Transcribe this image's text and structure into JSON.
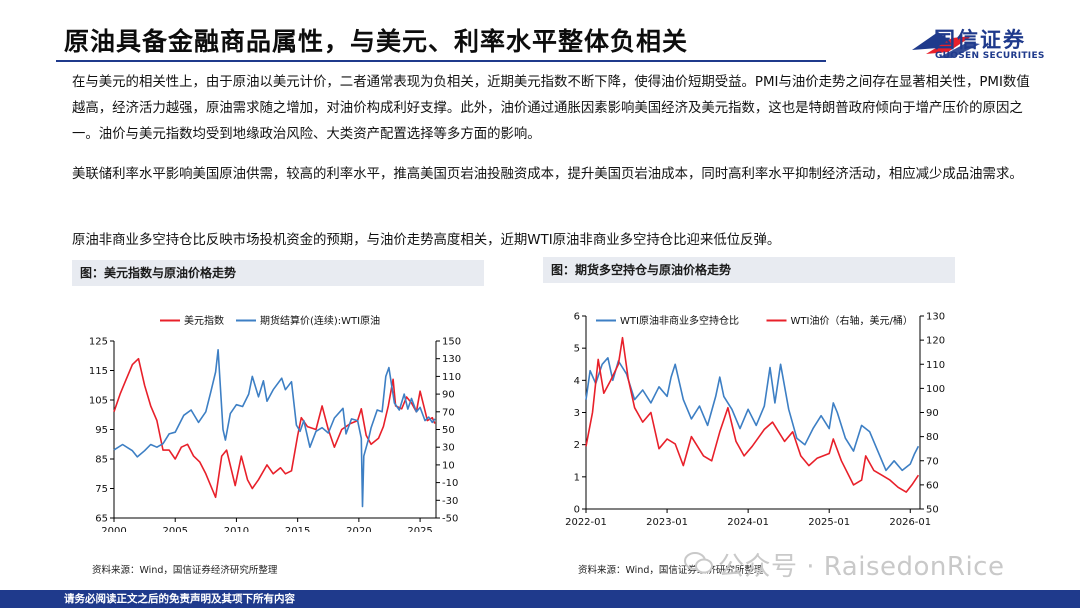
{
  "header": {
    "title": "原油具备金融商品属性，与美元、利率水平整体负相关",
    "logo_cn": "国信证券",
    "logo_en": "GUOSEN SECURITIES"
  },
  "body": {
    "p1": "在与美元的相关性上，由于原油以美元计价，二者通常表现为负相关，近期美元指数不断下降，使得油价短期受益。PMI与油价走势之间存在显著相关性，PMI数值越高，经济活力越强，原油需求随之增加，对油价构成利好支撑。此外，油价通过通胀因素影响美国经济及美元指数，这也是特朗普政府倾向于增产压价的原因之一。油价与美元指数均受到地缘政治风险、大类资产配置选择等多方面的影响。",
    "p2": "美联储利率水平影响美国原油供需，较高的利率水平，推高美国页岩油投融资成本，提升美国页岩油成本，同时高利率水平抑制经济活动，相应减少成品油需求。",
    "p3": "原油非商业多空持仓比反映市场投机资金的预期，与油价走势高度相关，近期WTI原油非商业多空持仓比迎来低位反弹。"
  },
  "figures": {
    "fig1_caption": "图：美元指数与原油价格走势",
    "fig2_caption": "图：期货多空持仓与原油价格走势",
    "source1": "资料来源：Wind，国信证券经济研究所整理",
    "source2": "资料来源：Wind，国信证券经济研究所整理"
  },
  "watermark": "公众号 · RaisedonRice",
  "footer": "请务必阅读正文之后的免责声明及其项下所有内容",
  "colors": {
    "red": "#e8202a",
    "blue": "#3d7fc4",
    "navy": "#1f3a8c"
  },
  "chart_data": [
    {
      "type": "line",
      "legend_placement": "top",
      "grid": false,
      "x_ticks": [
        "2000",
        "2005",
        "2010",
        "2015",
        "2020",
        "2025"
      ],
      "xlim": [
        2000,
        2026.3
      ],
      "y_left_ticks": [
        "65",
        "75",
        "85",
        "95",
        "105",
        "115",
        "125"
      ],
      "ylim_left": [
        65,
        125
      ],
      "y_right_ticks": [
        "-50",
        "-30",
        "-10",
        "10",
        "30",
        "50",
        "70",
        "90",
        "110",
        "130",
        "150"
      ],
      "ylim_right": [
        -50,
        150
      ],
      "series": [
        {
          "name": "美元指数",
          "color": "#e8202a",
          "axis": "left",
          "points": [
            [
              2000.0,
              101
            ],
            [
              2000.5,
              107
            ],
            [
              2001.0,
              112
            ],
            [
              2001.5,
              117
            ],
            [
              2002.0,
              119
            ],
            [
              2002.5,
              110
            ],
            [
              2003.0,
              103
            ],
            [
              2003.5,
              98
            ],
            [
              2004.0,
              88
            ],
            [
              2004.5,
              88
            ],
            [
              2005.0,
              85
            ],
            [
              2005.5,
              89
            ],
            [
              2006.0,
              90
            ],
            [
              2006.5,
              86
            ],
            [
              2007.0,
              84
            ],
            [
              2007.5,
              80
            ],
            [
              2008.0,
              75
            ],
            [
              2008.3,
              72
            ],
            [
              2008.8,
              86
            ],
            [
              2009.2,
              88
            ],
            [
              2009.9,
              76
            ],
            [
              2010.4,
              86
            ],
            [
              2010.9,
              78
            ],
            [
              2011.3,
              75
            ],
            [
              2011.8,
              78
            ],
            [
              2012.5,
              83
            ],
            [
              2013.0,
              80
            ],
            [
              2013.6,
              82
            ],
            [
              2014.0,
              80
            ],
            [
              2014.5,
              81
            ],
            [
              2015.0,
              93
            ],
            [
              2015.3,
              99
            ],
            [
              2015.8,
              96
            ],
            [
              2016.5,
              95
            ],
            [
              2017.0,
              103
            ],
            [
              2017.5,
              95
            ],
            [
              2018.0,
              89
            ],
            [
              2018.6,
              95
            ],
            [
              2019.3,
              97
            ],
            [
              2019.9,
              98
            ],
            [
              2020.2,
              102
            ],
            [
              2020.6,
              93
            ],
            [
              2021.0,
              90
            ],
            [
              2021.6,
              92
            ],
            [
              2022.0,
              96
            ],
            [
              2022.4,
              103
            ],
            [
              2022.8,
              112
            ],
            [
              2023.0,
              103
            ],
            [
              2023.5,
              102
            ],
            [
              2023.9,
              106
            ],
            [
              2024.3,
              104
            ],
            [
              2024.7,
              101
            ],
            [
              2025.0,
              108
            ],
            [
              2025.3,
              103
            ],
            [
              2025.6,
              98
            ],
            [
              2026.0,
              99
            ],
            [
              2026.2,
              97
            ]
          ]
        },
        {
          "name": "期货结算价(连续):WTI原油",
          "color": "#3d7fc4",
          "axis": "right",
          "points": [
            [
              2000.0,
              27
            ],
            [
              2000.7,
              33
            ],
            [
              2001.5,
              26
            ],
            [
              2001.9,
              19
            ],
            [
              2002.5,
              26
            ],
            [
              2003.0,
              33
            ],
            [
              2003.5,
              30
            ],
            [
              2004.0,
              34
            ],
            [
              2004.5,
              45
            ],
            [
              2005.0,
              47
            ],
            [
              2005.7,
              66
            ],
            [
              2006.3,
              72
            ],
            [
              2006.9,
              58
            ],
            [
              2007.5,
              70
            ],
            [
              2007.9,
              92
            ],
            [
              2008.3,
              115
            ],
            [
              2008.5,
              140
            ],
            [
              2008.9,
              50
            ],
            [
              2009.1,
              38
            ],
            [
              2009.5,
              68
            ],
            [
              2010.0,
              78
            ],
            [
              2010.5,
              76
            ],
            [
              2011.0,
              90
            ],
            [
              2011.3,
              110
            ],
            [
              2011.8,
              87
            ],
            [
              2012.2,
              105
            ],
            [
              2012.5,
              82
            ],
            [
              2013.0,
              95
            ],
            [
              2013.7,
              108
            ],
            [
              2014.0,
              95
            ],
            [
              2014.5,
              104
            ],
            [
              2014.9,
              55
            ],
            [
              2015.2,
              48
            ],
            [
              2015.5,
              60
            ],
            [
              2016.0,
              30
            ],
            [
              2016.5,
              48
            ],
            [
              2017.0,
              52
            ],
            [
              2017.5,
              46
            ],
            [
              2018.0,
              63
            ],
            [
              2018.7,
              74
            ],
            [
              2018.95,
              45
            ],
            [
              2019.4,
              62
            ],
            [
              2019.9,
              60
            ],
            [
              2020.2,
              40
            ],
            [
              2020.3,
              -37
            ],
            [
              2020.4,
              20
            ],
            [
              2020.8,
              40
            ],
            [
              2021.0,
              52
            ],
            [
              2021.5,
              72
            ],
            [
              2021.9,
              70
            ],
            [
              2022.2,
              110
            ],
            [
              2022.45,
              120
            ],
            [
              2022.9,
              80
            ],
            [
              2023.3,
              72
            ],
            [
              2023.7,
              90
            ],
            [
              2024.0,
              73
            ],
            [
              2024.3,
              85
            ],
            [
              2024.7,
              70
            ],
            [
              2025.0,
              75
            ],
            [
              2025.4,
              60
            ],
            [
              2025.7,
              64
            ],
            [
              2026.0,
              58
            ],
            [
              2026.2,
              62
            ]
          ]
        }
      ]
    },
    {
      "type": "line",
      "legend_placement": "top",
      "grid": false,
      "x_ticks": [
        "2022-01",
        "2023-01",
        "2024-01",
        "2025-01",
        "2026-01"
      ],
      "xlim": [
        2022.0,
        2026.12
      ],
      "y_left_ticks": [
        "0",
        "1",
        "2",
        "3",
        "4",
        "5",
        "6"
      ],
      "ylim_left": [
        0,
        6
      ],
      "y_right_ticks": [
        "50",
        "60",
        "70",
        "80",
        "90",
        "100",
        "110",
        "120",
        "130"
      ],
      "ylim_right": [
        50,
        130
      ],
      "series": [
        {
          "name": "WTI原油非商业多空持仓比",
          "color": "#3d7fc4",
          "axis": "left",
          "points": [
            [
              2022.0,
              3.4
            ],
            [
              2022.05,
              4.3
            ],
            [
              2022.12,
              3.9
            ],
            [
              2022.2,
              4.5
            ],
            [
              2022.27,
              4.7
            ],
            [
              2022.33,
              4.0
            ],
            [
              2022.4,
              4.6
            ],
            [
              2022.5,
              4.2
            ],
            [
              2022.6,
              3.4
            ],
            [
              2022.7,
              3.7
            ],
            [
              2022.8,
              3.3
            ],
            [
              2022.9,
              3.8
            ],
            [
              2023.0,
              3.5
            ],
            [
              2023.05,
              4.1
            ],
            [
              2023.1,
              4.5
            ],
            [
              2023.2,
              3.4
            ],
            [
              2023.3,
              2.8
            ],
            [
              2023.4,
              3.2
            ],
            [
              2023.5,
              2.6
            ],
            [
              2023.6,
              3.5
            ],
            [
              2023.65,
              4.1
            ],
            [
              2023.7,
              3.5
            ],
            [
              2023.8,
              3.1
            ],
            [
              2023.9,
              2.5
            ],
            [
              2024.0,
              3.1
            ],
            [
              2024.1,
              2.6
            ],
            [
              2024.2,
              3.2
            ],
            [
              2024.27,
              4.4
            ],
            [
              2024.33,
              3.3
            ],
            [
              2024.4,
              4.5
            ],
            [
              2024.5,
              3.1
            ],
            [
              2024.6,
              2.2
            ],
            [
              2024.7,
              2.0
            ],
            [
              2024.8,
              2.5
            ],
            [
              2024.9,
              2.9
            ],
            [
              2025.0,
              2.5
            ],
            [
              2025.05,
              3.3
            ],
            [
              2025.1,
              3.0
            ],
            [
              2025.2,
              2.2
            ],
            [
              2025.3,
              1.8
            ],
            [
              2025.4,
              2.6
            ],
            [
              2025.5,
              2.4
            ],
            [
              2025.6,
              1.8
            ],
            [
              2025.7,
              1.2
            ],
            [
              2025.8,
              1.5
            ],
            [
              2025.9,
              1.2
            ],
            [
              2026.0,
              1.4
            ],
            [
              2026.05,
              1.7
            ],
            [
              2026.1,
              1.95
            ]
          ]
        },
        {
          "name": "WTI油价（右轴，美元/桶）",
          "color": "#e8202a",
          "axis": "right",
          "points": [
            [
              2022.0,
              76
            ],
            [
              2022.08,
              90
            ],
            [
              2022.15,
              112
            ],
            [
              2022.22,
              98
            ],
            [
              2022.3,
              103
            ],
            [
              2022.4,
              110
            ],
            [
              2022.45,
              121
            ],
            [
              2022.52,
              104
            ],
            [
              2022.6,
              92
            ],
            [
              2022.7,
              86
            ],
            [
              2022.8,
              90
            ],
            [
              2022.9,
              75
            ],
            [
              2023.0,
              79
            ],
            [
              2023.1,
              77
            ],
            [
              2023.2,
              68
            ],
            [
              2023.3,
              80
            ],
            [
              2023.45,
              72
            ],
            [
              2023.55,
              70
            ],
            [
              2023.65,
              82
            ],
            [
              2023.75,
              92
            ],
            [
              2023.85,
              78
            ],
            [
              2023.95,
              72
            ],
            [
              2024.05,
              76
            ],
            [
              2024.2,
              83
            ],
            [
              2024.3,
              86
            ],
            [
              2024.45,
              78
            ],
            [
              2024.55,
              82
            ],
            [
              2024.65,
              72
            ],
            [
              2024.75,
              68
            ],
            [
              2024.85,
              71
            ],
            [
              2025.0,
              73
            ],
            [
              2025.05,
              79
            ],
            [
              2025.15,
              70
            ],
            [
              2025.3,
              60
            ],
            [
              2025.4,
              62
            ],
            [
              2025.45,
              72
            ],
            [
              2025.55,
              66
            ],
            [
              2025.65,
              64
            ],
            [
              2025.75,
              62
            ],
            [
              2025.85,
              59
            ],
            [
              2025.95,
              57
            ],
            [
              2026.02,
              60
            ],
            [
              2026.1,
              64
            ]
          ]
        }
      ]
    }
  ]
}
